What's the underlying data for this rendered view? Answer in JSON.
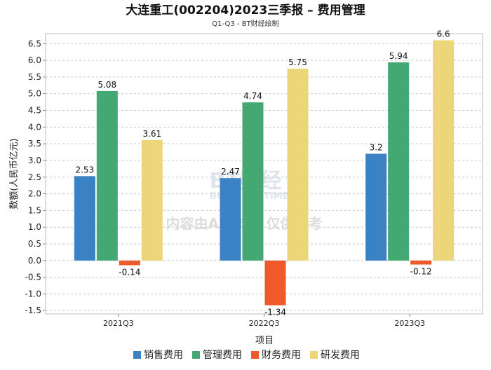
{
  "chart_data": {
    "type": "bar",
    "title": "大连重工(002204)2023三季报 – 费用管理",
    "subtitle": "Q1-Q3 - BT财经绘制",
    "xlabel": "项目",
    "ylabel": "数额(人民币亿元)",
    "ylim": [
      -1.6,
      6.8
    ],
    "yticks": [
      -1.5,
      -1.0,
      -0.5,
      0.0,
      0.5,
      1.0,
      1.5,
      2.0,
      2.5,
      3.0,
      3.5,
      4.0,
      4.5,
      5.0,
      5.5,
      6.0,
      6.5
    ],
    "ytick_labels": [
      "-1.5",
      "-1.0",
      "-0.5",
      "0.0",
      "0.5",
      "1.0",
      "1.5",
      "2.0",
      "2.5",
      "3.0",
      "3.5",
      "4.0",
      "4.5",
      "5.0",
      "5.5",
      "6.0",
      "6.5"
    ],
    "grid": true,
    "legend_position": "bottom",
    "categories": [
      "2021Q3",
      "2022Q3",
      "2023Q3"
    ],
    "series": [
      {
        "name": "销售费用",
        "color": "#3a82c4",
        "values": [
          2.53,
          2.47,
          3.2
        ],
        "labels": [
          "2.53",
          "2.47",
          "3.2"
        ]
      },
      {
        "name": "管理费用",
        "color": "#44a872",
        "values": [
          5.08,
          4.74,
          5.94
        ],
        "labels": [
          "5.08",
          "4.74",
          "5.94"
        ]
      },
      {
        "name": "财务费用",
        "color": "#ee5a2a",
        "values": [
          -0.14,
          -1.34,
          -0.12
        ],
        "labels": [
          "-0.14",
          "-1.34",
          "-0.12"
        ]
      },
      {
        "name": "研发费用",
        "color": "#edd57a",
        "values": [
          3.61,
          5.75,
          6.6
        ],
        "labels": [
          "3.61",
          "5.75",
          "6.6"
        ]
      }
    ]
  },
  "watermark": {
    "brand": "BT财经",
    "brand_sub": "BUSINESS TIMES",
    "notice": "内容由AI生成，仅供参考"
  }
}
